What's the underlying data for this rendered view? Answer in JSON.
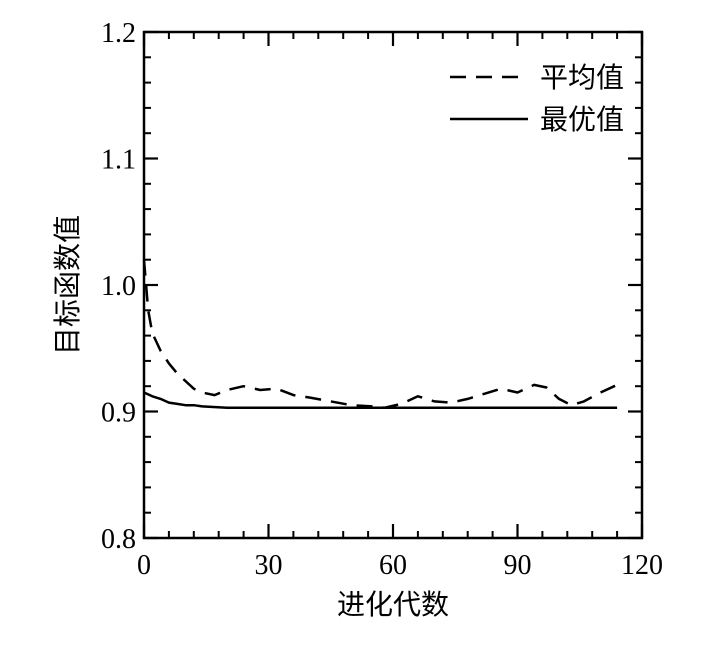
{
  "chart_data": {
    "type": "line",
    "xlabel": "进化代数",
    "ylabel": "目标函数值",
    "xlim": [
      0,
      120
    ],
    "ylim": [
      0.8,
      1.2
    ],
    "xticks": [
      0,
      30,
      60,
      90,
      120
    ],
    "xtick_labels": [
      "0",
      "30",
      "60",
      "90",
      "120"
    ],
    "yticks": [
      0.8,
      0.9,
      1.0,
      1.1,
      1.2
    ],
    "ytick_labels": [
      "0.8",
      "0.9",
      "1.0",
      "1.1",
      "1.2"
    ],
    "legend_position": "top-right",
    "grid": false,
    "series": [
      {
        "name": "平均值",
        "style": "dashed",
        "color": "#000000",
        "x": [
          0,
          1,
          2,
          4,
          6,
          8,
          10,
          12,
          14,
          17,
          20,
          24,
          28,
          32,
          36,
          40,
          45,
          50,
          55,
          58,
          62,
          66,
          70,
          74,
          78,
          82,
          86,
          90,
          94,
          97,
          100,
          103,
          106,
          110,
          114
        ],
        "y": [
          1.02,
          0.98,
          0.962,
          0.948,
          0.938,
          0.93,
          0.924,
          0.918,
          0.915,
          0.913,
          0.917,
          0.92,
          0.917,
          0.918,
          0.913,
          0.911,
          0.908,
          0.905,
          0.904,
          0.903,
          0.906,
          0.912,
          0.908,
          0.907,
          0.91,
          0.914,
          0.918,
          0.915,
          0.921,
          0.919,
          0.91,
          0.905,
          0.908,
          0.915,
          0.921
        ]
      },
      {
        "name": "最优值",
        "style": "solid",
        "color": "#000000",
        "x": [
          0,
          2,
          4,
          6,
          8,
          10,
          12,
          14,
          20,
          40,
          60,
          80,
          100,
          114
        ],
        "y": [
          0.915,
          0.912,
          0.91,
          0.907,
          0.906,
          0.905,
          0.905,
          0.904,
          0.903,
          0.903,
          0.903,
          0.903,
          0.903,
          0.903
        ]
      }
    ]
  }
}
